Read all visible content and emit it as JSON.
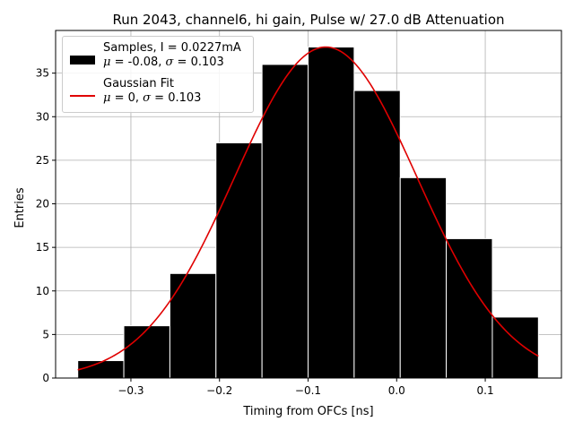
{
  "chart_data": {
    "type": "bar",
    "title": "Run 2043, channel6, hi gain, Pulse w/ 27.0 dB Attenuation",
    "xlabel": "Timing from OFCs [ns]",
    "ylabel": "Entries",
    "xlim": [
      -0.385,
      0.186
    ],
    "ylim": [
      0,
      39.9
    ],
    "grid": true,
    "legend_position": "top-left",
    "xticks": [
      -0.3,
      -0.2,
      -0.1,
      0.0,
      0.1
    ],
    "xtick_labels": [
      "−0.3",
      "−0.2",
      "−0.1",
      "0.0",
      "0.1"
    ],
    "yticks": [
      0,
      5,
      10,
      15,
      20,
      25,
      30,
      35
    ],
    "ytick_labels": [
      "0",
      "5",
      "10",
      "15",
      "20",
      "25",
      "30",
      "35"
    ],
    "bins": [
      [
        -0.36,
        -0.308
      ],
      [
        -0.308,
        -0.256
      ],
      [
        -0.256,
        -0.204
      ],
      [
        -0.204,
        -0.152
      ],
      [
        -0.152,
        -0.1
      ],
      [
        -0.1,
        -0.048
      ],
      [
        -0.048,
        0.004
      ],
      [
        0.004,
        0.056
      ],
      [
        0.056,
        0.108
      ],
      [
        0.108,
        0.16
      ]
    ],
    "values": [
      2,
      6,
      12,
      27,
      36,
      38,
      33,
      23,
      16,
      7
    ],
    "series": [
      {
        "name": "Samples, I = 0.0227mA",
        "name_line2_mu": "-0.08",
        "name_line2_sigma": "0.103",
        "type": "histogram",
        "color": "#000000",
        "edgecolor": "#ffffff"
      },
      {
        "name": "Gaussian Fit",
        "name_line2_mu": "0",
        "name_line2_sigma": "0.103",
        "type": "line",
        "color": "#e00000",
        "mean": -0.08,
        "sigma": 0.103,
        "amplitude": 38.0,
        "x_range": [
          -0.36,
          0.16
        ]
      }
    ]
  }
}
